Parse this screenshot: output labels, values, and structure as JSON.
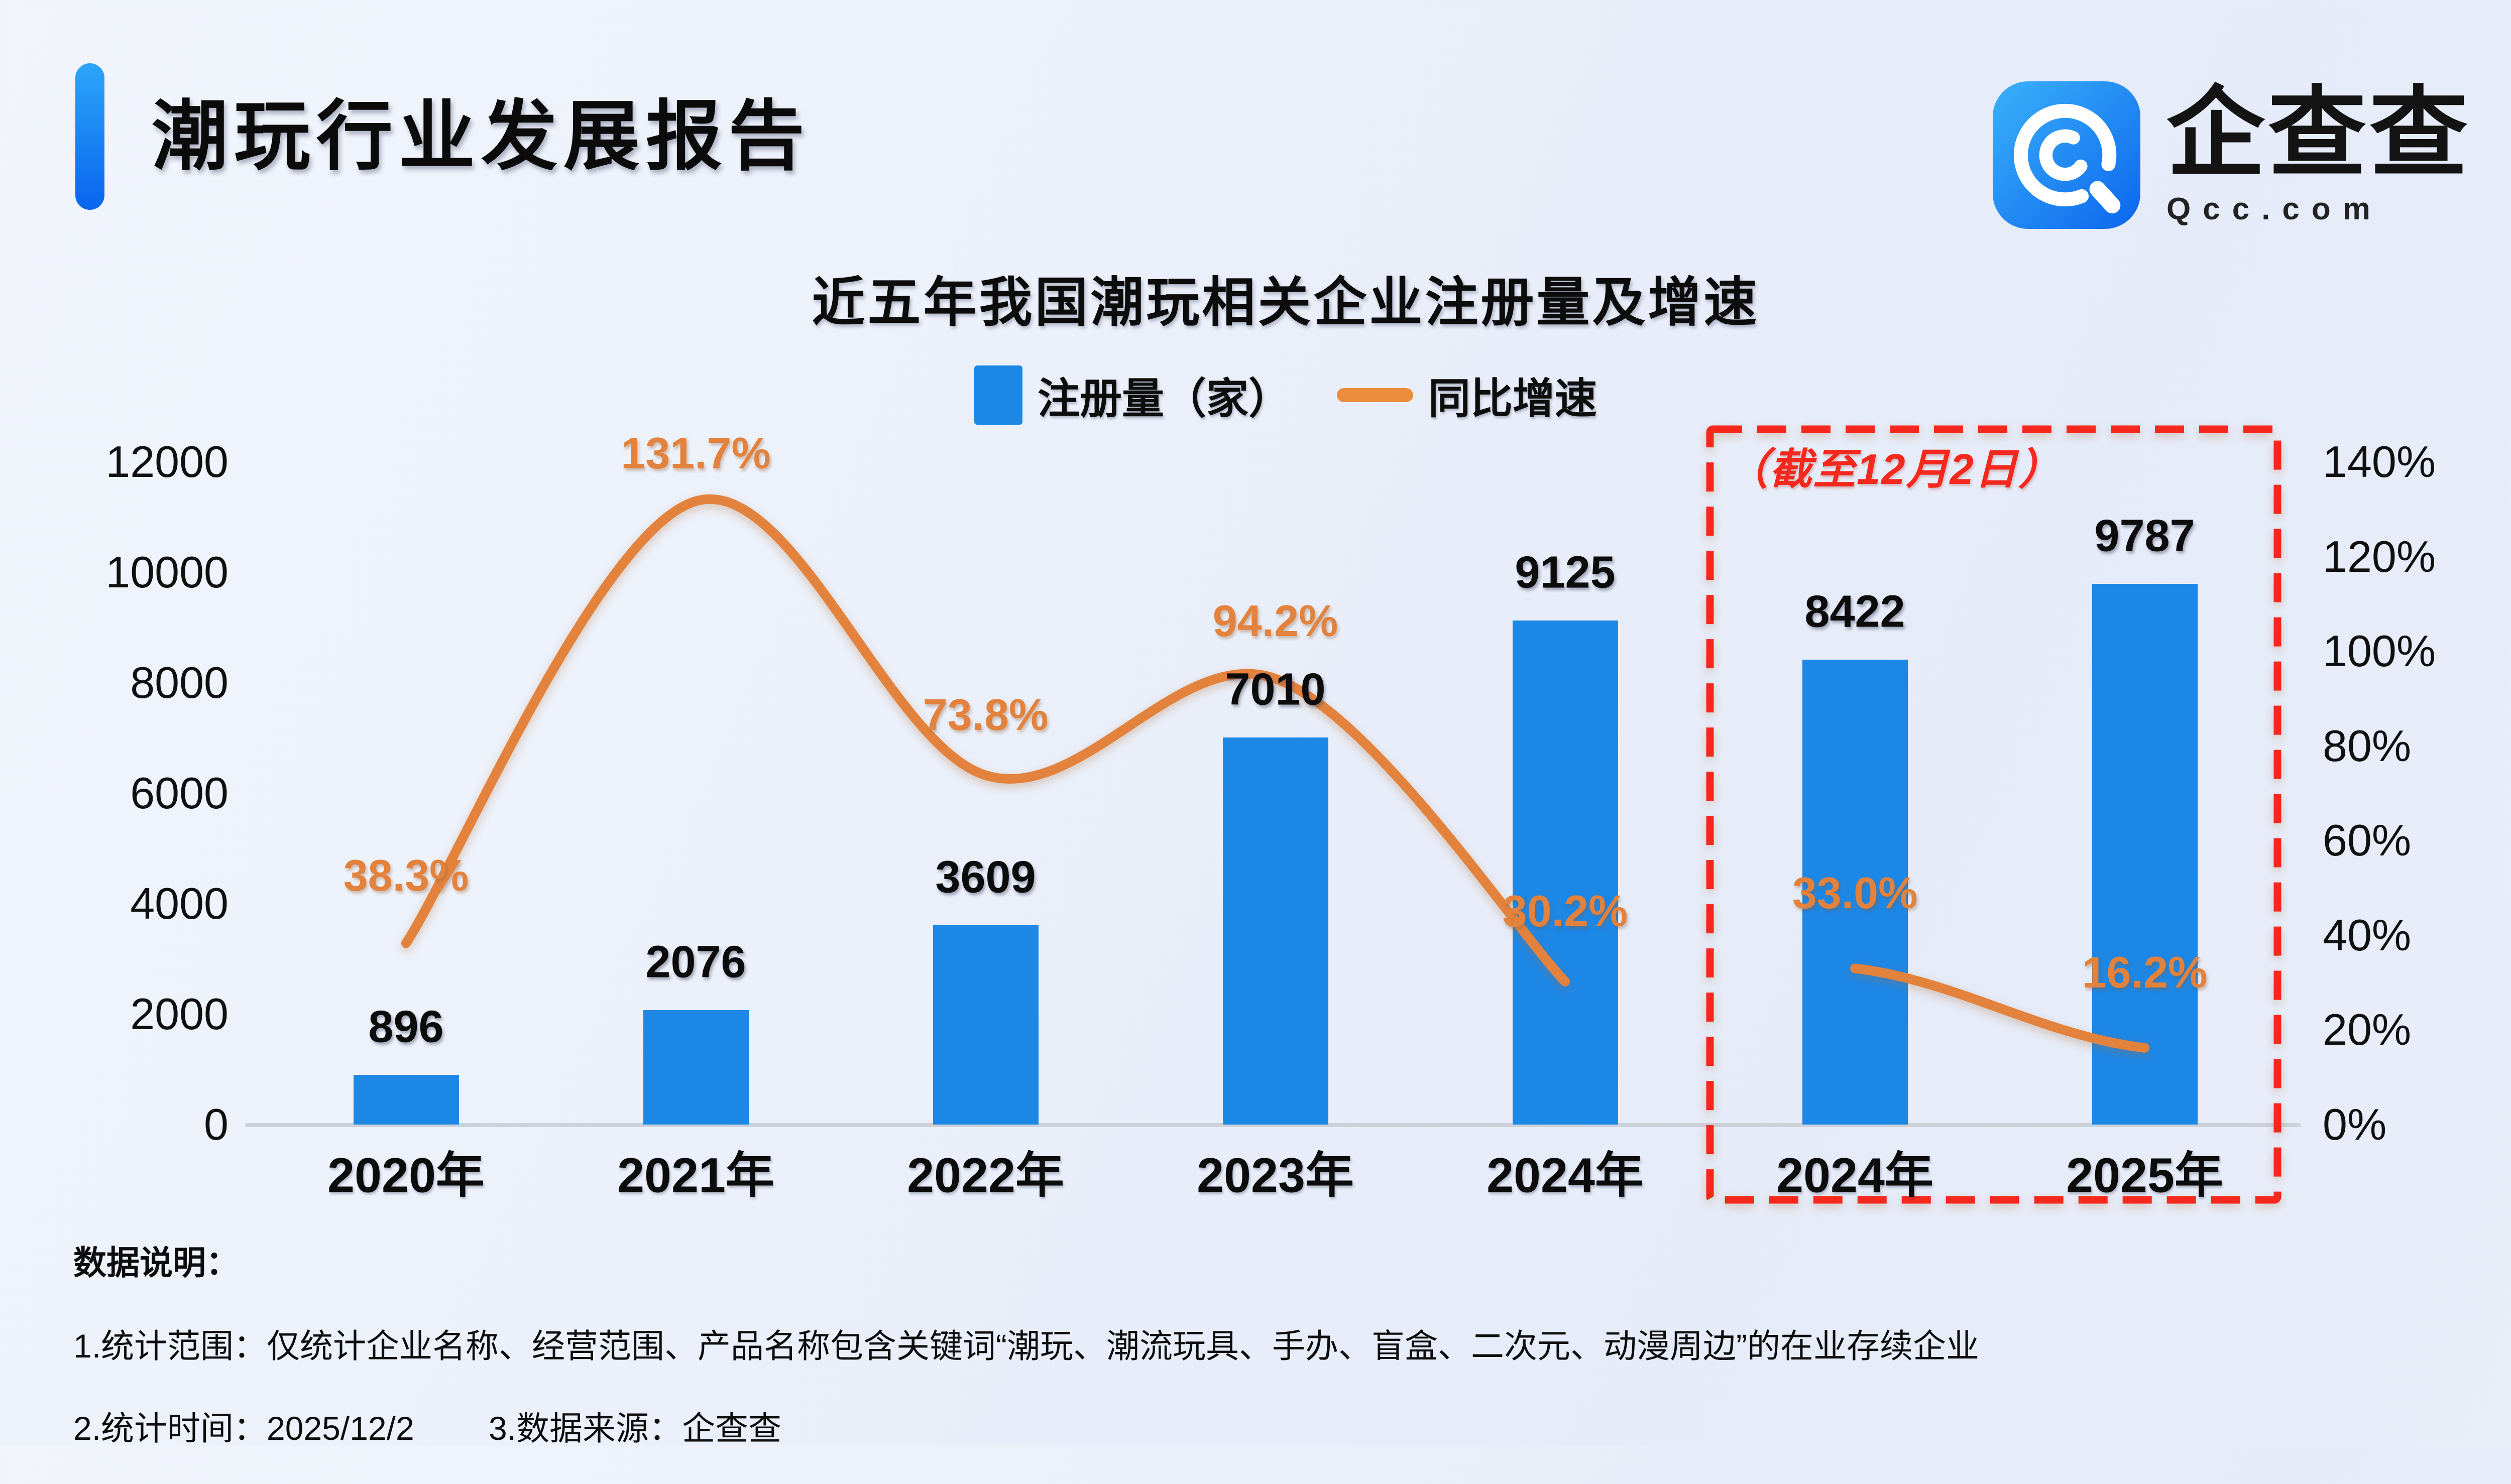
{
  "page": {
    "background": "#ebf0fa"
  },
  "header": {
    "title": "潮玩行业发展报告",
    "accent_color": "#1285f0"
  },
  "logo": {
    "name": "企查查",
    "domain": "Qcc.com",
    "icon": "qcc-magnifier-q-icon",
    "icon_color_top": "#3bb1fa",
    "icon_color_bottom": "#0b66ee"
  },
  "chart": {
    "title": "近五年我国潮玩相关企业注册量及增速",
    "legend": [
      {
        "label": "注册量（家）",
        "type": "bar",
        "color": "#1d87e6"
      },
      {
        "label": "同比增速",
        "type": "line",
        "color": "#ec8c3d"
      }
    ],
    "left_axis": {
      "ticks": [
        "12000",
        "10000",
        "8000",
        "6000",
        "4000",
        "2000",
        "0"
      ]
    },
    "right_axis": {
      "ticks": [
        "140%",
        "120%",
        "100%",
        "80%",
        "60%",
        "40%",
        "20%",
        "0%"
      ]
    },
    "annotation": {
      "text": "（截至12月2日）",
      "color": "#f5281e"
    }
  },
  "chart_data": {
    "type": "bar",
    "categories": [
      "2020年",
      "2021年",
      "2022年",
      "2023年",
      "2024年",
      "2024年",
      "2025年"
    ],
    "series": [
      {
        "name": "注册量（家）",
        "type": "bar",
        "color": "#1d87e6",
        "values": [
          896,
          2076,
          3609,
          7010,
          9125,
          8422,
          9787
        ],
        "labels": [
          "896",
          "2076",
          "3609",
          "7010",
          "9125",
          "8422",
          "9787"
        ]
      },
      {
        "name": "同比增速",
        "type": "line",
        "color": "#e2823c",
        "values_pct": [
          38.3,
          131.7,
          73.8,
          94.2,
          30.2,
          33.0,
          16.2
        ],
        "labels": [
          "38.3%",
          "131.7%",
          "73.8%",
          "94.2%",
          "30.2%",
          "33.0%",
          "16.2%"
        ],
        "segments": [
          [
            0,
            4
          ],
          [
            5,
            6
          ]
        ]
      }
    ],
    "ylim_left": [
      0,
      12000
    ],
    "ylim_right": [
      0,
      140
    ],
    "grid": false,
    "legend_position": "top",
    "highlight_box": {
      "label": "（截至12月2日）",
      "covers_categories": [
        "2024年",
        "2025年"
      ],
      "border_color": "#f5281e"
    }
  },
  "notes": {
    "heading": "数据说明：",
    "line1": "1.统计范围：仅统计企业名称、经营范围、产品名称包含关键词“潮玩、潮流玩具、手办、盲盒、二次元、动漫周边”的在业存续企业",
    "line2_items": [
      "2.统计时间：2025/12/2",
      "3.数据来源：企查查"
    ]
  }
}
